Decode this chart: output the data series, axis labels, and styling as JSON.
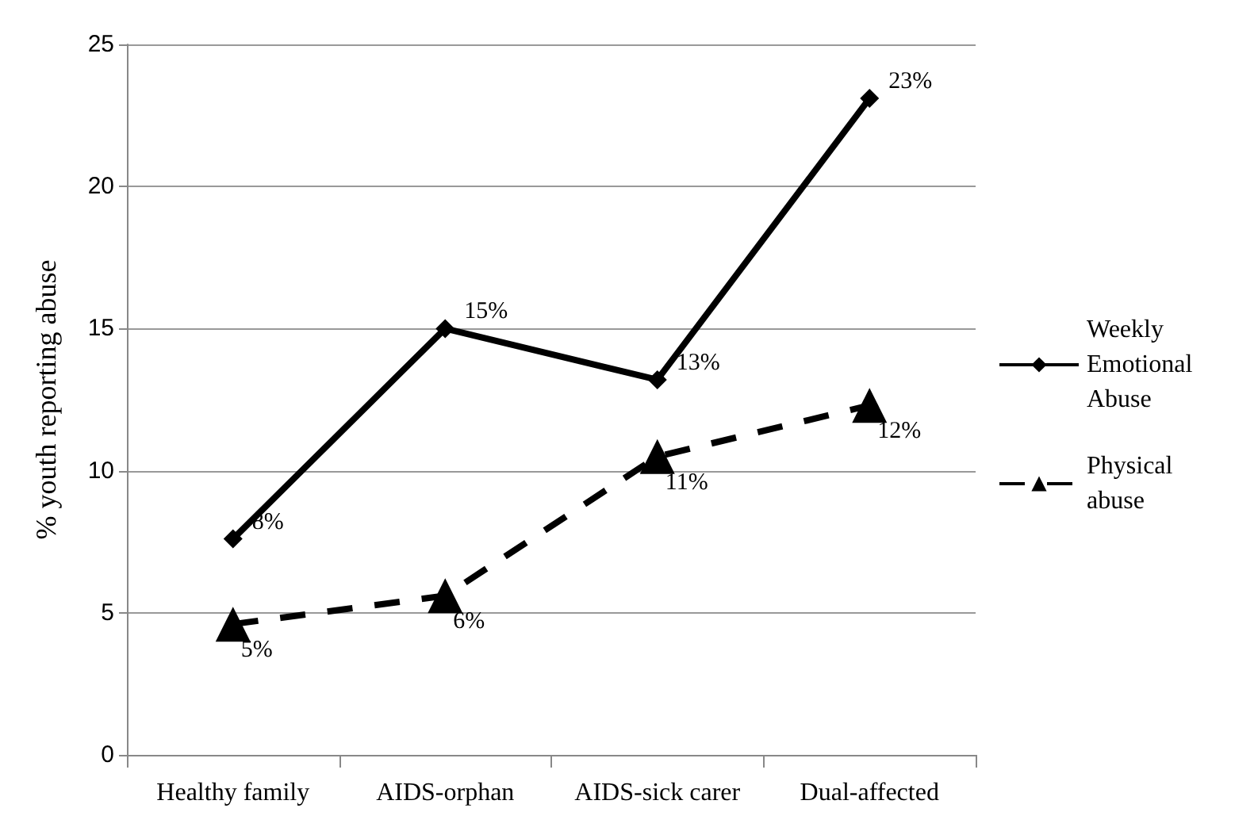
{
  "chart_data": {
    "type": "line",
    "ylabel": "% youth reporting abuse",
    "categories": [
      "Healthy family",
      "AIDS-orphan",
      "AIDS-sick carer",
      "Dual-affected"
    ],
    "series": [
      {
        "name": "Weekly Emotional Abuse",
        "color": "#000000",
        "marker": "diamond",
        "line_style": "solid",
        "values": [
          7.6,
          15.0,
          13.2,
          23.1
        ],
        "value_labels": [
          "8%",
          "15%",
          "13%",
          "23%"
        ]
      },
      {
        "name": "Physical abuse",
        "color": "#000000",
        "marker": "triangle",
        "line_style": "dashed",
        "values": [
          4.6,
          5.6,
          10.5,
          12.3
        ],
        "value_labels": [
          "5%",
          "6%",
          "11%",
          "12%"
        ]
      }
    ],
    "ylim": [
      0,
      25
    ],
    "yticks": [
      0,
      5,
      10,
      15,
      20,
      25
    ],
    "grid": "y",
    "legend": "right"
  }
}
